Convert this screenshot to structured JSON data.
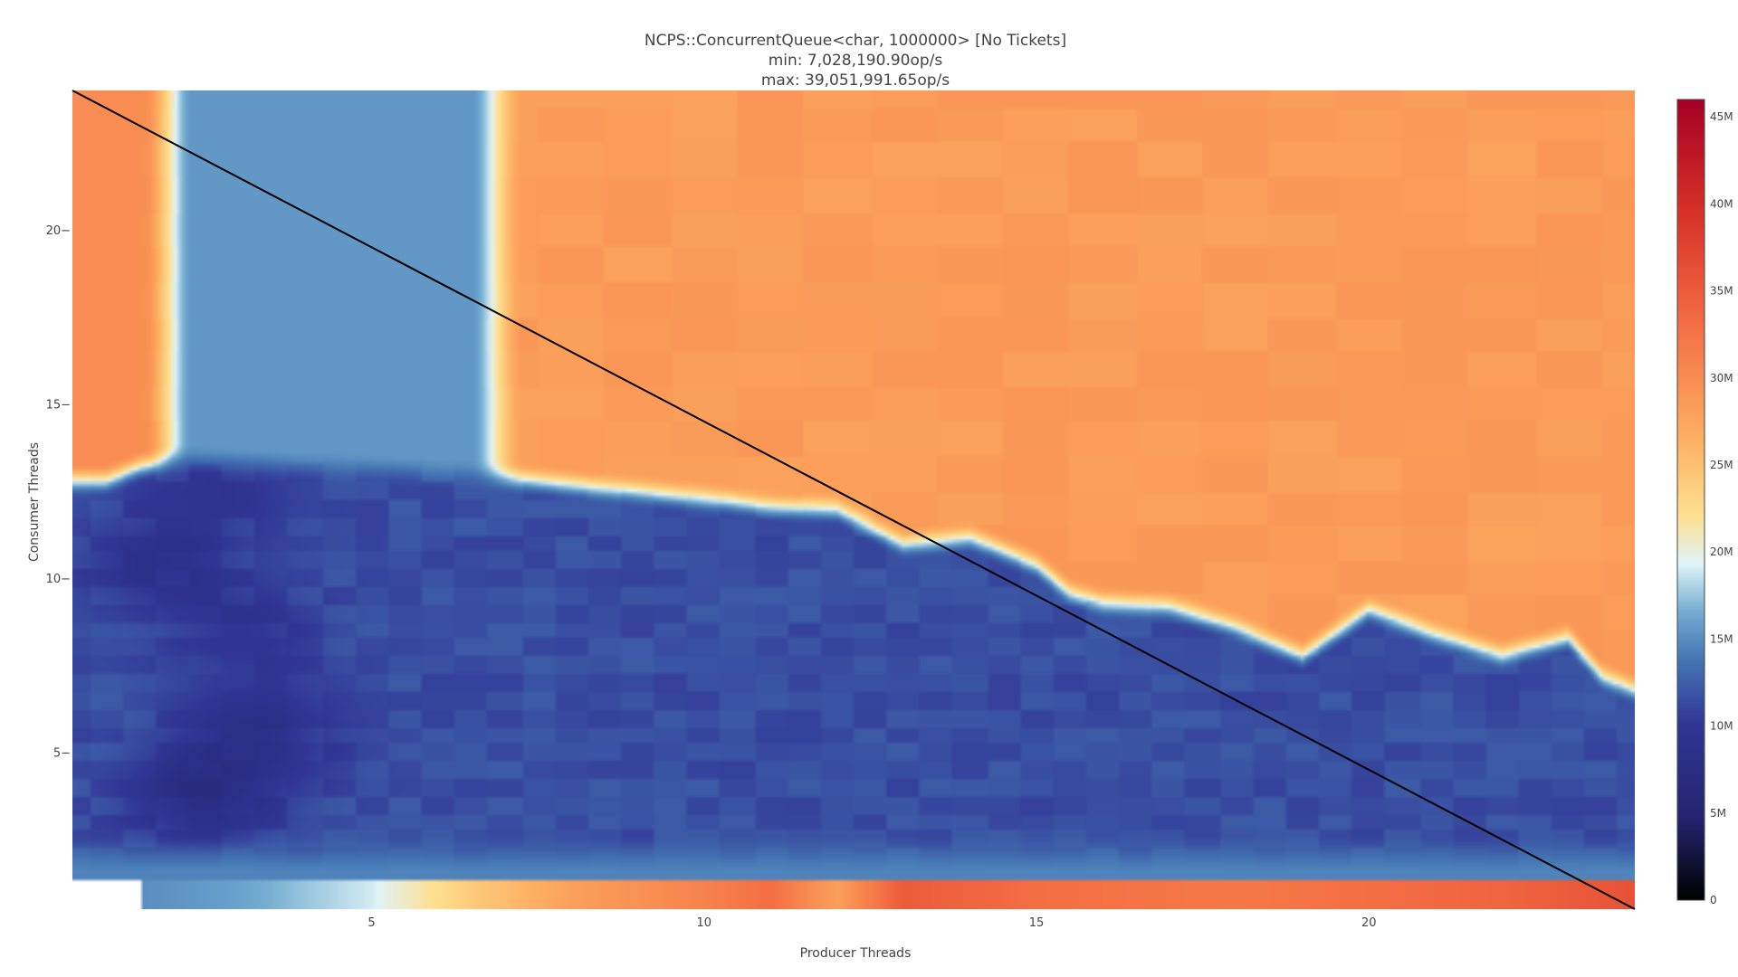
{
  "chart_data": {
    "type": "heatmap",
    "title_lines": [
      "NCPS::ConcurrentQueue<char, 1000000> [No Tickets]",
      "min: 7,028,190.90op/s",
      "max: 39,051,991.65op/s"
    ],
    "xlabel": "Producer Threads",
    "ylabel": "Consumer Threads",
    "xlim": [
      0.5,
      24
    ],
    "ylim": [
      0.5,
      24
    ],
    "x_ticks": [
      5,
      10,
      15,
      20
    ],
    "y_ticks": [
      5,
      10,
      15,
      20
    ],
    "x_tick_labels": [
      "5",
      "10",
      "15",
      "20"
    ],
    "y_tick_labels": [
      "5−",
      "10−",
      "15−",
      "20−"
    ],
    "colorscale": "RdYlBu (reversed)",
    "colorbar": {
      "range": [
        0,
        46000000
      ],
      "ticks": [
        0,
        5000000,
        10000000,
        15000000,
        20000000,
        25000000,
        30000000,
        35000000,
        40000000,
        45000000
      ],
      "tick_labels": [
        "0",
        "5M",
        "10M",
        "15M",
        "20M",
        "25M",
        "30M",
        "35M",
        "40M",
        "45M"
      ]
    },
    "diagonal_line": {
      "from": [
        0.5,
        24
      ],
      "to": [
        24,
        0.5
      ],
      "color": "#000000"
    },
    "boundary_y_by_x": [
      [
        0.5,
        12.8
      ],
      [
        1,
        12.8
      ],
      [
        1.5,
        13.2
      ],
      [
        2,
        13.4
      ],
      [
        3,
        13.3
      ],
      [
        4,
        13.2
      ],
      [
        5,
        13.1
      ],
      [
        6,
        13.0
      ],
      [
        7,
        12.9
      ],
      [
        8,
        12.7
      ],
      [
        9,
        12.5
      ],
      [
        10,
        12.3
      ],
      [
        11,
        12.1
      ],
      [
        12,
        12.0
      ],
      [
        12.5,
        11.5
      ],
      [
        13,
        11.0
      ],
      [
        14,
        11.2
      ],
      [
        15,
        10.4
      ],
      [
        15.5,
        9.6
      ],
      [
        16,
        9.3
      ],
      [
        17,
        9.2
      ],
      [
        18,
        8.6
      ],
      [
        19,
        7.8
      ],
      [
        20,
        9.1
      ],
      [
        21,
        8.4
      ],
      [
        22,
        7.8
      ],
      [
        23,
        8.3
      ],
      [
        23.5,
        7.2
      ],
      [
        24,
        6.8
      ]
    ],
    "light_band": {
      "x_from": 2.0,
      "x_to": 6.8,
      "y_from": 12.9,
      "y_to": 24,
      "value": 15500000
    },
    "left_hot_strip": {
      "x_from": 0.5,
      "x_to": 1.6,
      "y_from": 13.0,
      "y_to": 24,
      "value": 30000000
    },
    "bottom_row": {
      "y": 1,
      "points": [
        [
          0.5,
          null
        ],
        [
          1.5,
          15000000
        ],
        [
          3,
          16000000
        ],
        [
          5,
          19000000
        ],
        [
          6.5,
          24000000
        ],
        [
          8,
          28000000
        ],
        [
          10,
          31000000
        ],
        [
          11,
          33000000
        ],
        [
          12,
          28000000
        ],
        [
          13,
          35000000
        ],
        [
          15,
          33000000
        ],
        [
          18,
          32000000
        ],
        [
          20,
          33000000
        ],
        [
          22,
          34000000
        ],
        [
          24,
          36000000
        ]
      ]
    },
    "row_two_value": 14500000,
    "upper_region_value": 28500000,
    "lower_region_value": 11500000,
    "dark_patches": [
      {
        "x": 2.5,
        "y": 3.8,
        "value": 8000000
      },
      {
        "x": 3.2,
        "y": 5.5,
        "value": 8500000
      },
      {
        "x": 1.8,
        "y": 10.5,
        "value": 9000000
      },
      {
        "x": 3.0,
        "y": 8.5,
        "value": 9500000
      },
      {
        "x": 2.6,
        "y": 12.5,
        "value": 10000000
      }
    ]
  }
}
